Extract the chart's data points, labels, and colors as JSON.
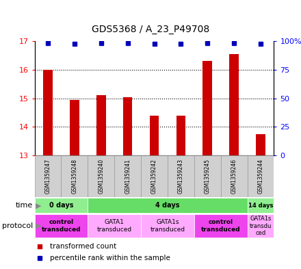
{
  "title": "GDS5368 / A_23_P49708",
  "samples": [
    "GSM1359247",
    "GSM1359248",
    "GSM1359240",
    "GSM1359241",
    "GSM1359242",
    "GSM1359243",
    "GSM1359245",
    "GSM1359246",
    "GSM1359244"
  ],
  "red_values": [
    16.0,
    14.95,
    15.1,
    15.05,
    14.4,
    14.4,
    16.3,
    16.55,
    13.75
  ],
  "blue_y_positions": [
    16.93,
    16.91,
    16.93,
    16.93,
    16.9,
    16.91,
    16.93,
    16.93,
    16.91
  ],
  "ymin": 13,
  "ymax": 17,
  "yticks_left": [
    13,
    14,
    15,
    16,
    17
  ],
  "yticks_right": [
    0,
    25,
    50,
    75,
    100
  ],
  "time_groups": [
    {
      "label": "0 days",
      "start": 0,
      "end": 2,
      "color": "#90EE90"
    },
    {
      "label": "4 days",
      "start": 2,
      "end": 8,
      "color": "#66DD66"
    },
    {
      "label": "14 days",
      "start": 8,
      "end": 9,
      "color": "#90EE90"
    }
  ],
  "protocol_groups": [
    {
      "label": "control\ntransduced",
      "start": 0,
      "end": 2,
      "color": "#EE44EE",
      "bold": true
    },
    {
      "label": "GATA1\ntransduced",
      "start": 2,
      "end": 4,
      "color": "#FFAAFF",
      "bold": false
    },
    {
      "label": "GATA1s\ntransduced",
      "start": 4,
      "end": 6,
      "color": "#FFAAFF",
      "bold": false
    },
    {
      "label": "control\ntransduced",
      "start": 6,
      "end": 8,
      "color": "#EE44EE",
      "bold": true
    },
    {
      "label": "GATA1s\ntransdu\nced",
      "start": 8,
      "end": 9,
      "color": "#FFAAFF",
      "bold": false
    }
  ],
  "bar_color": "#CC0000",
  "blue_dot_color": "#0000BB",
  "bar_baseline": 13,
  "bar_width": 0.35
}
